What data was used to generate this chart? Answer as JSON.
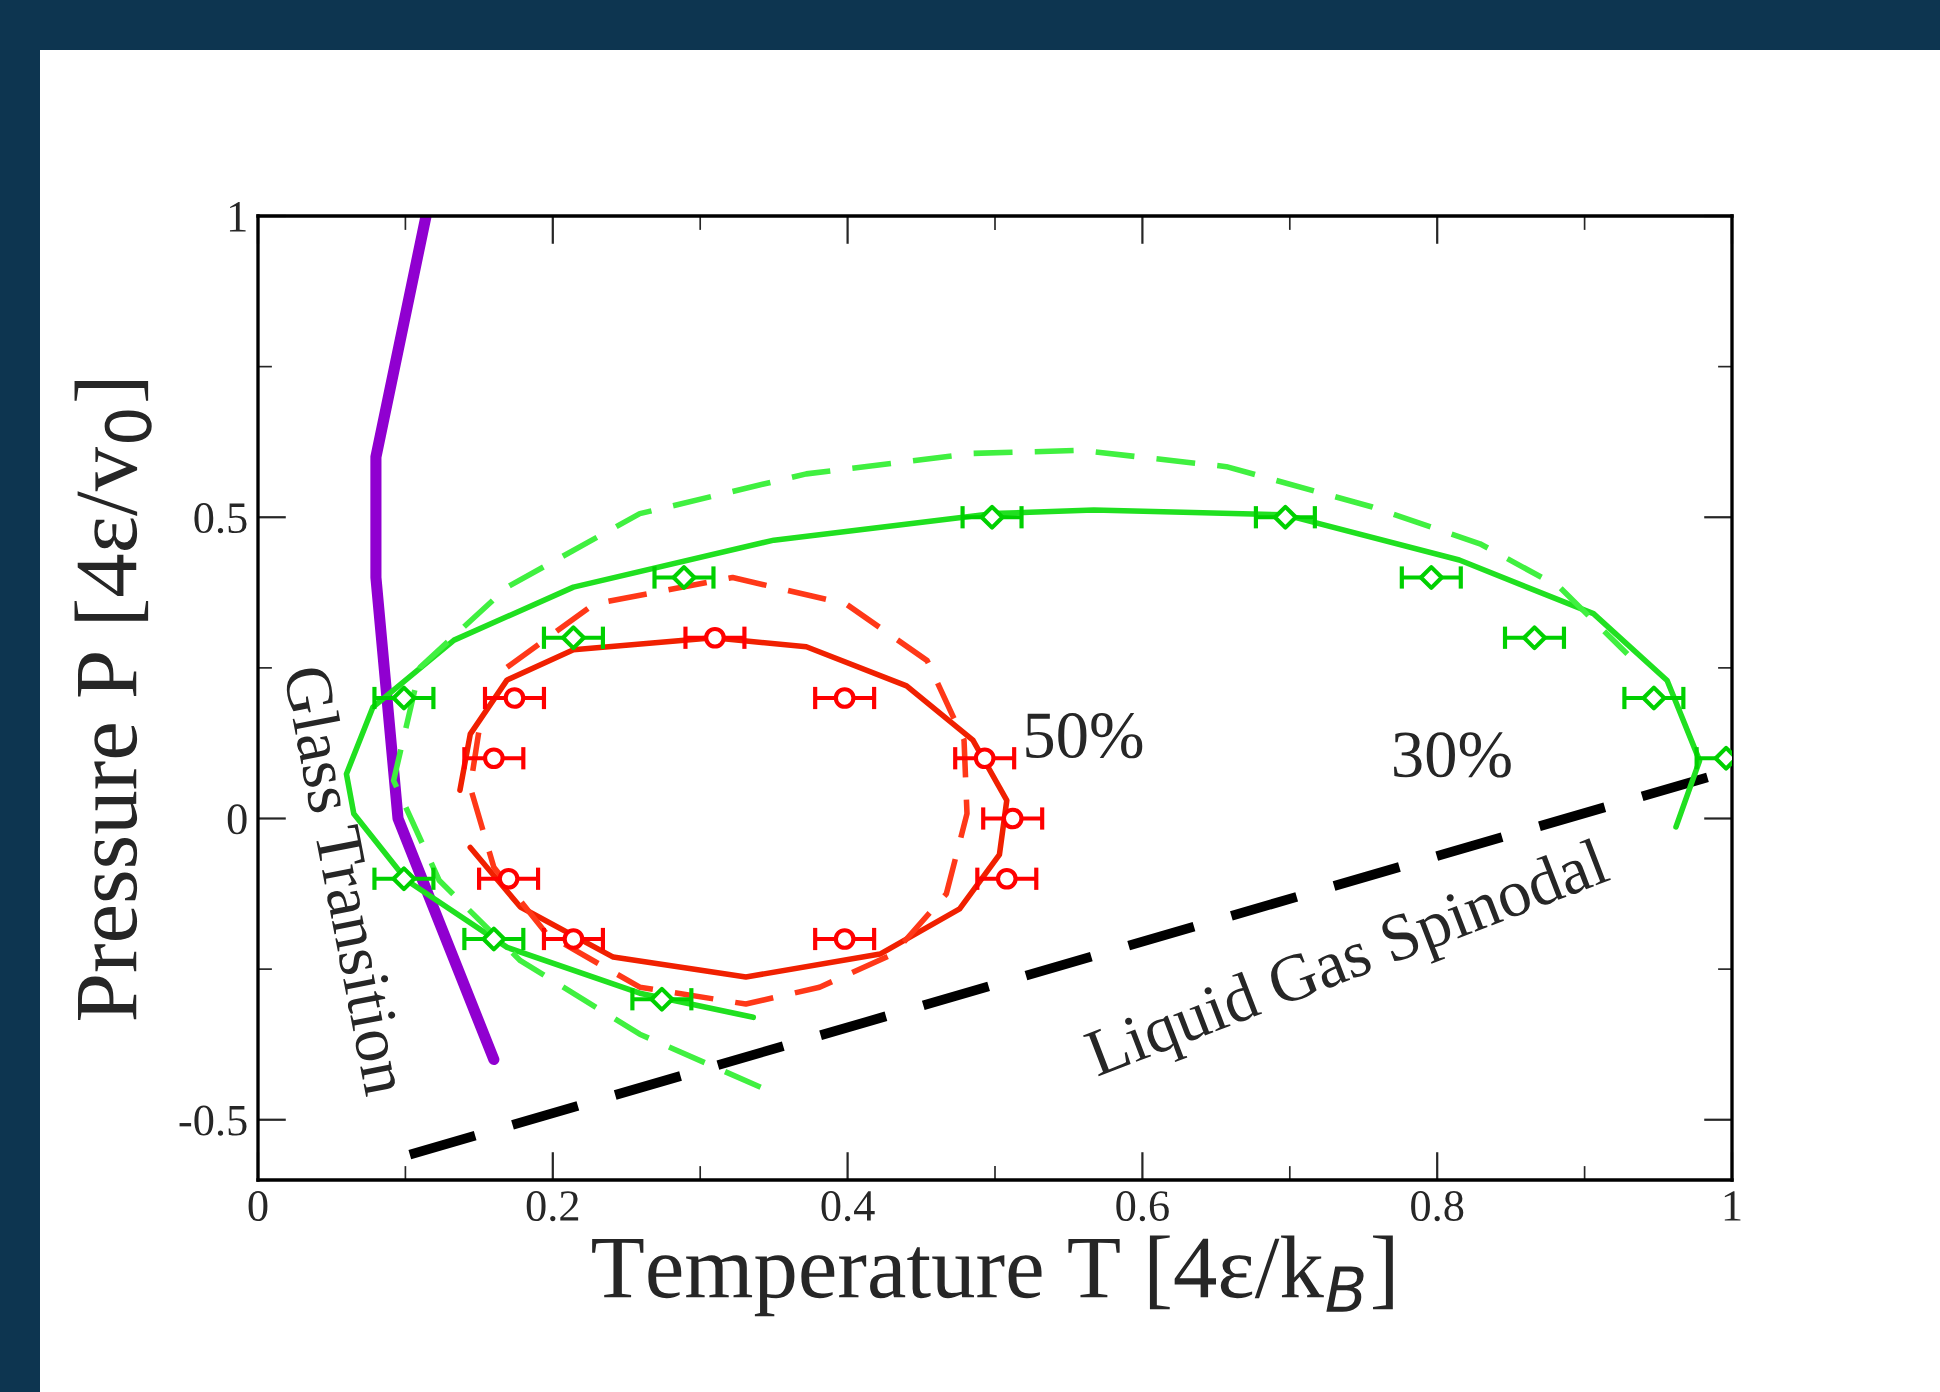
{
  "chart_data": {
    "type": "scatter",
    "xlabel": "Temperature T [4ε/k$_{B}$]",
    "ylabel": "Pressure P [4ε/v$_{0}$]",
    "xlim": [
      0,
      1
    ],
    "ylim": [
      -0.6,
      1
    ],
    "xticks": [
      0,
      {
        "value": 0.1,
        "label": null
      },
      0.2,
      {
        "value": 0.3,
        "label": null
      },
      0.4,
      {
        "value": 0.5,
        "label": null
      },
      0.6,
      {
        "value": 0.7,
        "label": null
      },
      0.8,
      {
        "value": 0.9,
        "label": null
      },
      1
    ],
    "yticks": [
      -0.5,
      {
        "value": -0.25,
        "label": null
      },
      0,
      {
        "value": 0.25,
        "label": null
      },
      0.5,
      {
        "value": 0.75,
        "label": null
      },
      1
    ],
    "series": [
      {
        "type": "line",
        "color": "#9000d0",
        "line_style": "solid",
        "marker": "none",
        "x": [
          0.114,
          0.08,
          0.08,
          0.095,
          0.16
        ],
        "values": [
          1.0,
          0.6,
          0.4,
          0.0,
          -0.4
        ]
      },
      {
        "type": "line",
        "color": "#000000",
        "line_style": "dashed",
        "marker": "none",
        "x": [
          0.103,
          1.0
        ],
        "values": [
          -0.558,
          0.08
        ]
      },
      {
        "type": "line",
        "color": "#f02000",
        "line_style": "solid",
        "marker": "none",
        "x": [
          0.137,
          0.144,
          0.169,
          0.214,
          0.309,
          0.372,
          0.44,
          0.485,
          0.508,
          0.503,
          0.476,
          0.422,
          0.331,
          0.241,
          0.178,
          0.144
        ],
        "values": [
          0.047,
          0.14,
          0.23,
          0.28,
          0.3,
          0.285,
          0.22,
          0.13,
          0.03,
          -0.06,
          -0.15,
          -0.225,
          -0.263,
          -0.23,
          -0.147,
          -0.048
        ]
      },
      {
        "type": "line",
        "color": "#ff3818",
        "line_style": "dashed",
        "marker": "none",
        "x": [
          0.169,
          0.228,
          0.322,
          0.399,
          0.454,
          0.479,
          0.481,
          0.467,
          0.431,
          0.381,
          0.331,
          0.259,
          0.196,
          0.16,
          0.144,
          0.151
        ],
        "values": [
          0.251,
          0.356,
          0.4,
          0.356,
          0.262,
          0.13,
          0.008,
          -0.125,
          -0.225,
          -0.28,
          -0.308,
          -0.28,
          -0.192,
          -0.081,
          0.052,
          0.163
        ]
      },
      {
        "type": "line",
        "color": "#20e020",
        "line_style": "solid",
        "marker": "none",
        "x": [
          0.336,
          0.259,
          0.169,
          0.101,
          0.065,
          0.06,
          0.078,
          0.133,
          0.214,
          0.35,
          0.498,
          0.567,
          0.697,
          0.815,
          0.906,
          0.956,
          0.978,
          0.962
        ],
        "values": [
          -0.33,
          -0.29,
          -0.214,
          -0.103,
          0.008,
          0.074,
          0.185,
          0.296,
          0.384,
          0.462,
          0.506,
          0.512,
          0.504,
          0.429,
          0.34,
          0.229,
          0.096,
          -0.014
        ]
      },
      {
        "type": "line",
        "color": "#40f040",
        "line_style": "dashed",
        "marker": "none",
        "x": [
          0.341,
          0.259,
          0.178,
          0.123,
          0.092,
          0.11,
          0.169,
          0.259,
          0.372,
          0.485,
          0.558,
          0.657,
          0.756,
          0.829,
          0.883,
          0.929
        ],
        "values": [
          -0.446,
          -0.358,
          -0.236,
          -0.103,
          0.063,
          0.251,
          0.384,
          0.506,
          0.572,
          0.606,
          0.611,
          0.584,
          0.517,
          0.456,
          0.384,
          0.273
        ]
      },
      {
        "color": "#ff0000",
        "marker": "circle",
        "x": [
          0.31,
          0.174,
          0.398,
          0.16,
          0.493,
          0.512,
          0.17,
          0.508,
          0.214,
          0.398
        ],
        "values": [
          0.3,
          0.2,
          0.2,
          0.1,
          0.1,
          0.0,
          -0.1,
          -0.1,
          -0.2,
          -0.2
        ],
        "xerrors": [
          0.02,
          0.02,
          0.02,
          0.02,
          0.02,
          0.02,
          0.02,
          0.02,
          0.02,
          0.02
        ]
      },
      {
        "color": "#00d000",
        "marker": "diamond",
        "x": [
          0.289,
          0.214,
          0.099,
          0.099,
          0.16,
          0.274,
          0.498,
          0.697,
          0.796,
          0.866,
          0.947,
          0.996
        ],
        "values": [
          0.4,
          0.3,
          0.2,
          -0.1,
          -0.2,
          -0.3,
          0.5,
          0.5,
          0.4,
          0.3,
          0.2,
          0.1
        ],
        "xerrors": [
          0.02,
          0.02,
          0.02,
          0.02,
          0.02,
          0.02,
          0.02,
          0.02,
          0.02,
          0.02,
          0.02,
          0.02
        ]
      }
    ],
    "annotations": [
      "50%",
      "30%",
      "Glass Transition",
      "Liquid Gas Spinodal"
    ]
  }
}
